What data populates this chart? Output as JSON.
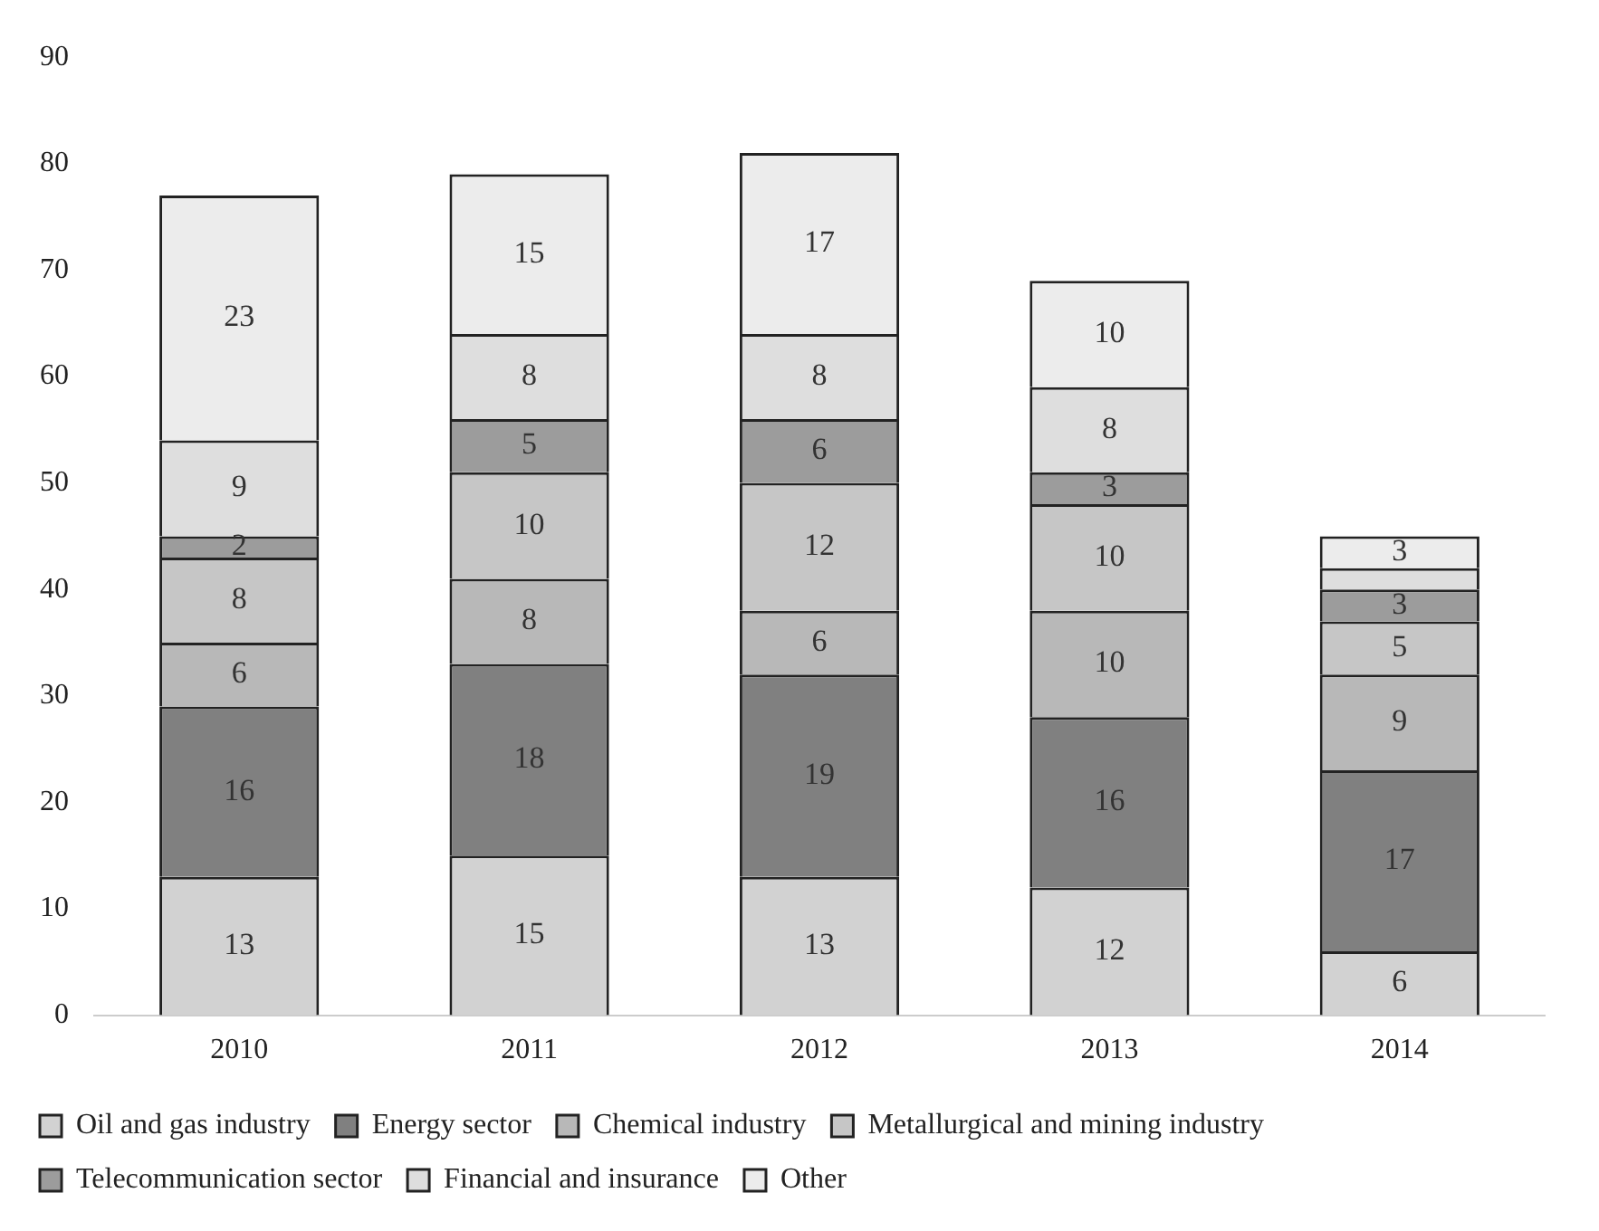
{
  "chart_data": {
    "type": "bar",
    "stacked": true,
    "categories": [
      "2010",
      "2011",
      "2012",
      "2013",
      "2014"
    ],
    "ylim": [
      0,
      90
    ],
    "yticks": [
      0,
      10,
      20,
      30,
      40,
      50,
      60,
      70,
      80,
      90
    ],
    "grid": false,
    "legend": "bottom",
    "series": [
      {
        "name": "Oil and gas industry",
        "color": "#d2d2d2",
        "values": [
          13,
          15,
          13,
          12,
          6
        ],
        "value_labels": [
          "13",
          "15",
          "13",
          "12",
          "6"
        ]
      },
      {
        "name": "Energy sector",
        "color": "#808080",
        "values": [
          16,
          18,
          19,
          16,
          17
        ],
        "value_labels": [
          "16",
          "18",
          "19",
          "16",
          "17"
        ]
      },
      {
        "name": "Chemical industry",
        "color": "#b8b8b8",
        "values": [
          6,
          8,
          6,
          10,
          9
        ],
        "value_labels": [
          "6",
          "8",
          "6",
          "10",
          "9"
        ]
      },
      {
        "name": "Metallurgical and mining industry",
        "color": "#c6c6c6",
        "values": [
          8,
          10,
          12,
          10,
          5
        ],
        "value_labels": [
          "8",
          "10",
          "12",
          "10",
          "5"
        ]
      },
      {
        "name": "Telecommunication sector",
        "color": "#9c9c9c",
        "values": [
          2,
          5,
          6,
          3,
          3
        ],
        "value_labels": [
          "2",
          "5",
          "6",
          "3",
          "3"
        ]
      },
      {
        "name": "Financial and insurance",
        "color": "#dedede",
        "values": [
          9,
          8,
          8,
          8,
          2
        ],
        "value_labels": [
          "9",
          "8",
          "8",
          "8",
          null
        ]
      },
      {
        "name": "Other",
        "color": "#ececec",
        "values": [
          23,
          15,
          17,
          10,
          3
        ],
        "value_labels": [
          "23",
          "15",
          "17",
          "10",
          "3"
        ]
      }
    ]
  }
}
